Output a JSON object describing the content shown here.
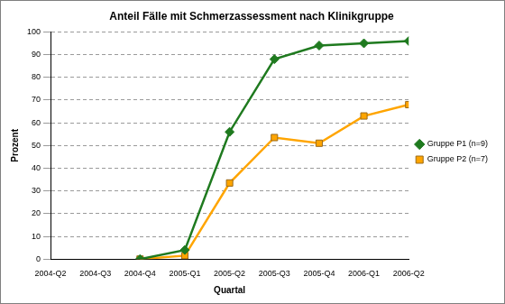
{
  "chart_data": {
    "type": "line",
    "title": "Anteil Fälle mit Schmerzassessment nach Klinikgruppe",
    "x_label": "Quartal",
    "y_label": "Prozent",
    "categories": [
      "2004-Q2",
      "2004-Q3",
      "2004-Q4",
      "2005-Q1",
      "2005-Q2",
      "2005-Q3",
      "2005-Q4",
      "2006-Q1",
      "2006-Q2"
    ],
    "series": [
      {
        "name": "Gruppe P1 (n=9)",
        "color": "#1f7a1f",
        "marker": "diamond",
        "line_style": "solid",
        "values": [
          null,
          null,
          0,
          4,
          56,
          88,
          94,
          95,
          96
        ]
      },
      {
        "name": "Gruppe P2 (n=7)",
        "color": "#ffa500",
        "marker": "square",
        "line_style": "solid",
        "values": [
          null,
          null,
          0,
          1.5,
          33.5,
          53.5,
          51,
          63,
          68
        ]
      }
    ],
    "ylim": [
      0,
      100
    ],
    "yticks": [
      0,
      10,
      20,
      30,
      40,
      50,
      60,
      70,
      80,
      90,
      100
    ],
    "grid": true,
    "legend": "right"
  }
}
